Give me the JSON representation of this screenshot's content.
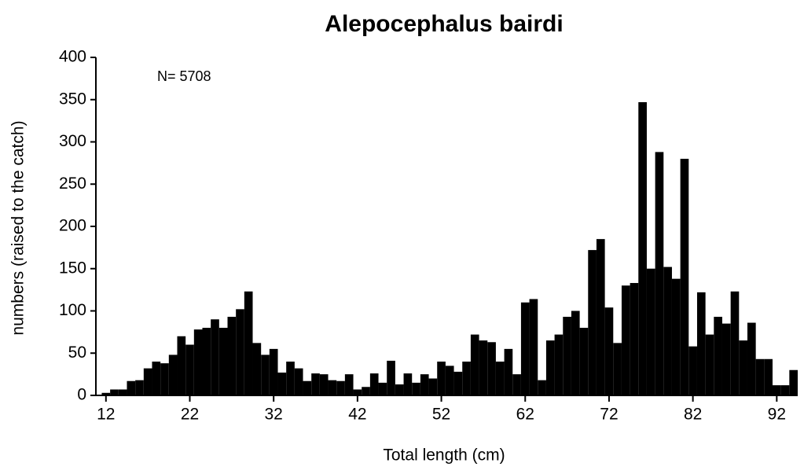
{
  "chart_data": {
    "type": "histogram",
    "title": "Alepocephalus bairdi",
    "annotation": "N= 5708",
    "xlabel": "Total length (cm)",
    "ylabel": "numbers (raised to the catch)",
    "color": "#000000",
    "x": [
      12,
      13,
      14,
      15,
      16,
      17,
      18,
      19,
      20,
      21,
      22,
      23,
      24,
      25,
      26,
      27,
      28,
      29,
      30,
      31,
      32,
      33,
      34,
      35,
      36,
      37,
      38,
      39,
      40,
      41,
      42,
      43,
      44,
      45,
      46,
      47,
      48,
      49,
      50,
      51,
      52,
      53,
      54,
      55,
      56,
      57,
      58,
      59,
      60,
      61,
      62,
      63,
      64,
      65,
      66,
      67,
      68,
      69,
      70,
      71,
      72,
      73,
      74,
      75,
      76,
      77,
      78,
      79,
      80,
      81,
      82,
      83,
      84,
      85,
      86,
      87,
      88,
      89,
      90,
      91,
      92,
      93,
      94
    ],
    "values": [
      3,
      7,
      7,
      17,
      18,
      32,
      40,
      38,
      48,
      70,
      60,
      78,
      80,
      90,
      80,
      93,
      102,
      123,
      62,
      48,
      55,
      27,
      40,
      32,
      17,
      26,
      25,
      18,
      17,
      25,
      7,
      10,
      26,
      15,
      41,
      13,
      26,
      15,
      25,
      20,
      40,
      35,
      28,
      40,
      72,
      65,
      63,
      40,
      55,
      25,
      110,
      114,
      18,
      65,
      72,
      93,
      100,
      80,
      172,
      185,
      104,
      62,
      130,
      133,
      347,
      150,
      288,
      152,
      138,
      280,
      58,
      122,
      72,
      93,
      85,
      123,
      65,
      86,
      43,
      43,
      12,
      12,
      30
    ],
    "xlim": [
      10.8,
      94.5
    ],
    "ylim": [
      0,
      400
    ],
    "xticks": [
      12,
      22,
      32,
      42,
      52,
      62,
      72,
      82,
      92
    ],
    "yticks": [
      0,
      50,
      100,
      150,
      200,
      250,
      300,
      350,
      400
    ]
  }
}
